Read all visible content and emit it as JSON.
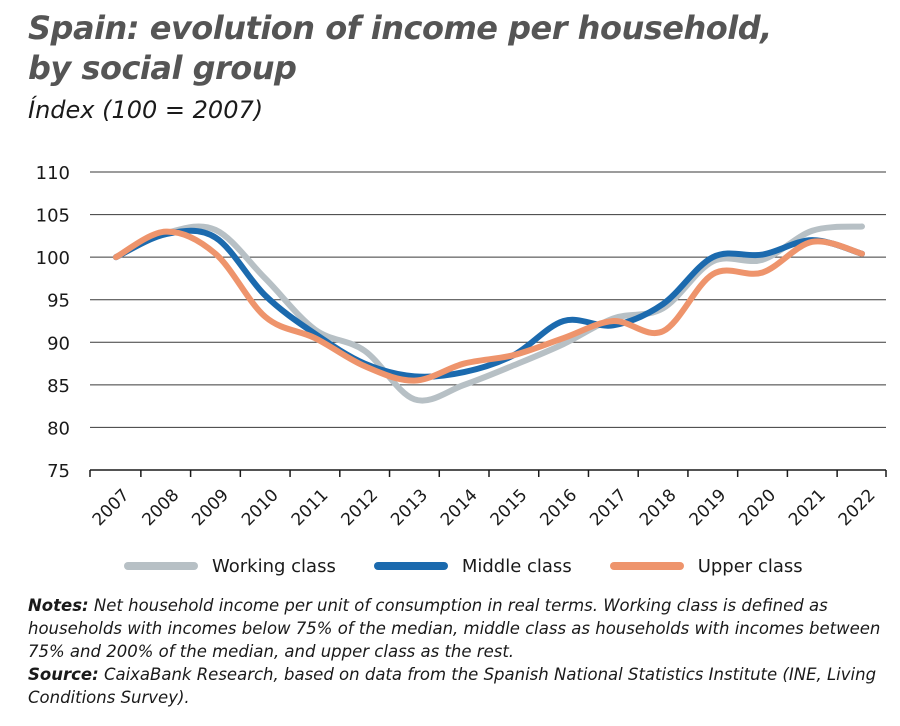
{
  "title_line1": "Spain: evolution of income per household,",
  "title_line2": "by social group",
  "subtitle": "Índex (100 = 2007)",
  "chart_data": {
    "type": "line",
    "title": "Spain: evolution of income per household, by social group",
    "subtitle": "Índex (100 = 2007)",
    "x": [
      2007,
      2008,
      2009,
      2010,
      2011,
      2012,
      2013,
      2014,
      2015,
      2016,
      2017,
      2018,
      2019,
      2020,
      2021,
      2022
    ],
    "ylim": [
      75,
      110
    ],
    "yticks": [
      75,
      80,
      85,
      90,
      95,
      100,
      105,
      110
    ],
    "grid": true,
    "legend_position": "bottom",
    "series": [
      {
        "name": "Working class",
        "color": "#b7c0c5",
        "values": [
          100,
          102.8,
          103.2,
          97.5,
          91.5,
          89.0,
          83.3,
          85.0,
          87.3,
          89.8,
          92.8,
          94.0,
          99.5,
          99.7,
          103.1,
          103.6
        ]
      },
      {
        "name": "Middle class",
        "color": "#1b6aae",
        "values": [
          100,
          102.7,
          102.3,
          95.5,
          91.0,
          87.5,
          86.0,
          86.5,
          88.5,
          92.5,
          92.0,
          94.5,
          100.0,
          100.3,
          102.0,
          100.4
        ]
      },
      {
        "name": "Upper class",
        "color": "#ee946c",
        "values": [
          100,
          103.0,
          100.4,
          93.0,
          90.5,
          87.2,
          85.5,
          87.5,
          88.5,
          90.5,
          92.5,
          91.3,
          98.0,
          98.2,
          101.8,
          100.4
        ]
      }
    ]
  },
  "notes": {
    "notes_label": "Notes:",
    "notes_text": "Net household income per unit of consumption in real terms. Working class is defined as households with incomes below 75% of the median, middle class as households with incomes between 75% and 200% of the median, and upper class as the rest.",
    "source_label": "Source:",
    "source_text": "CaixaBank Research, based on data from the Spanish National Statistics Institute (INE, Living Conditions Survey)."
  }
}
